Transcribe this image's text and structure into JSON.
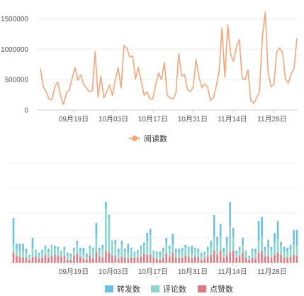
{
  "chart_data": [
    {
      "type": "line",
      "title": "",
      "xlabel": "",
      "ylabel": "",
      "x_ticks": [
        "09月19日",
        "10月03日",
        "10月17日",
        "10月31日",
        "11月14日",
        "11月28日"
      ],
      "y_ticks": [
        "0",
        "500000",
        "1000000",
        "1500000"
      ],
      "ylim": [
        0,
        1600000
      ],
      "grid": true,
      "legend_position": "bottom",
      "color": "#F4A57A",
      "series": [
        {
          "name": "阅读数",
          "values": [
            680000,
            380000,
            300000,
            180000,
            170000,
            380000,
            460000,
            230000,
            90000,
            280000,
            330000,
            520000,
            700000,
            490000,
            580000,
            420000,
            360000,
            300000,
            320000,
            960000,
            210000,
            560000,
            200000,
            300000,
            410000,
            240000,
            510000,
            700000,
            360000,
            1060000,
            1020000,
            870000,
            890000,
            510000,
            700000,
            460000,
            240000,
            300000,
            180000,
            180000,
            420000,
            610000,
            500000,
            780000,
            240000,
            200000,
            180000,
            280000,
            930000,
            560000,
            590000,
            340000,
            300000,
            380000,
            830000,
            550000,
            370000,
            430000,
            380000,
            160000,
            200000,
            390000,
            640000,
            1350000,
            540000,
            1400000,
            920000,
            800000,
            1040000,
            1160000,
            520000,
            500000,
            660000,
            160000,
            110000,
            200000,
            300000,
            1200000,
            1610000,
            620000,
            380000,
            430000,
            950000,
            1020000,
            940000,
            520000,
            440000,
            600000,
            680000,
            1180000
          ]
        }
      ]
    },
    {
      "type": "bar",
      "stacked": true,
      "title": "",
      "xlabel": "",
      "ylabel": "",
      "x_ticks": [
        "09月19日",
        "10月03日",
        "10月17日",
        "10月31日",
        "11月14日",
        "11月28日"
      ],
      "ylim": [
        0,
        100
      ],
      "grid": true,
      "legend_position": "bottom",
      "series": [
        {
          "name": "转发数",
          "color": "#6BBFE0",
          "values": [
            27,
            4,
            7,
            8,
            4,
            1,
            11,
            2,
            2,
            3,
            3,
            3,
            1,
            3,
            2,
            1,
            3,
            3,
            2,
            3,
            4,
            3,
            7,
            3,
            3,
            2,
            15,
            3,
            3,
            7,
            3,
            1,
            4,
            4,
            4,
            3,
            9,
            2,
            1,
            3,
            3,
            3,
            8,
            6,
            2,
            2,
            3,
            3,
            6,
            3,
            11,
            4,
            4,
            4,
            3,
            3,
            8,
            2,
            3,
            3,
            2,
            4,
            6,
            22,
            8,
            13,
            4,
            8,
            24,
            9,
            2,
            3,
            7,
            1,
            1,
            3,
            4,
            20,
            20,
            4,
            8,
            4,
            10,
            18,
            4,
            5,
            4,
            5,
            15,
            16
          ]
        },
        {
          "name": "评论数",
          "color": "#8ED6CC",
          "values": [
            8,
            8,
            6,
            6,
            5,
            4,
            8,
            5,
            4,
            5,
            6,
            6,
            10,
            6,
            7,
            5,
            6,
            4,
            4,
            5,
            9,
            6,
            4,
            3,
            7,
            9,
            14,
            6,
            10,
            42,
            35,
            14,
            12,
            6,
            12,
            6,
            6,
            8,
            5,
            5,
            8,
            8,
            14,
            20,
            5,
            5,
            5,
            7,
            10,
            8,
            8,
            5,
            5,
            6,
            8,
            7,
            5,
            7,
            5,
            4,
            5,
            6,
            8,
            14,
            10,
            14,
            6,
            10,
            26,
            14,
            5,
            6,
            8,
            6,
            3,
            6,
            6,
            12,
            14,
            6,
            8,
            7,
            12,
            14,
            9,
            6,
            6,
            7,
            10,
            10
          ]
        },
        {
          "name": "点赞数",
          "color": "#E07A80",
          "values": [
            10,
            7,
            6,
            5,
            5,
            3,
            6,
            6,
            4,
            5,
            8,
            5,
            7,
            8,
            7,
            6,
            7,
            3,
            3,
            7,
            9,
            6,
            4,
            3,
            7,
            4,
            11,
            6,
            5,
            12,
            10,
            7,
            7,
            4,
            6,
            5,
            4,
            5,
            5,
            5,
            6,
            9,
            8,
            8,
            5,
            4,
            3,
            5,
            9,
            6,
            10,
            5,
            5,
            5,
            7,
            6,
            4,
            6,
            6,
            3,
            4,
            6,
            8,
            12,
            8,
            12,
            5,
            8,
            11,
            12,
            5,
            7,
            10,
            5,
            3,
            5,
            4,
            10,
            12,
            6,
            7,
            5,
            8,
            10,
            8,
            5,
            5,
            6,
            8,
            7
          ]
        }
      ]
    }
  ]
}
